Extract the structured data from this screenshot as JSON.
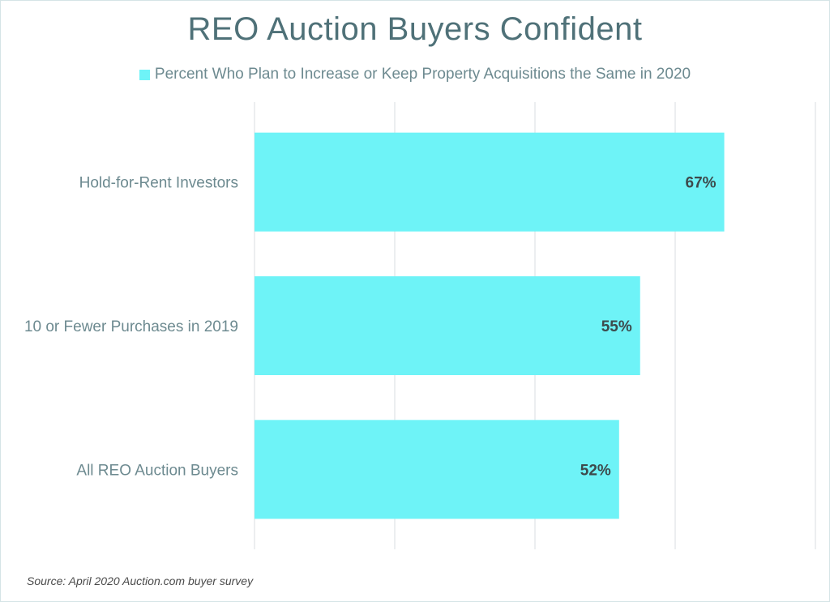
{
  "title": "REO Auction Buyers Confident",
  "legend_label": "Percent Who Plan to Increase or Keep Property Acquisitions the Same in 2020",
  "source": "Source: April 2020 Auction.com buyer survey",
  "colors": {
    "bar": "#6ef3f7",
    "grid": "#d9dee0",
    "category_text": "#6d8a90",
    "value_text": "#3d4a4c",
    "title": "#4f7178"
  },
  "chart_data": {
    "type": "bar",
    "orientation": "horizontal",
    "categories": [
      "Hold-for-Rent Investors",
      "10 or Fewer Purchases in 2019",
      "All REO Auction Buyers"
    ],
    "series": [
      {
        "name": "Percent Who Plan to Increase or Keep Property Acquisitions the Same in 2020",
        "values": [
          67,
          55,
          52
        ],
        "labels": [
          "67%",
          "55%",
          "52%"
        ]
      }
    ],
    "xlim": [
      0,
      80
    ],
    "grid": true,
    "legend_position": "top",
    "title": "REO Auction Buyers Confident"
  }
}
